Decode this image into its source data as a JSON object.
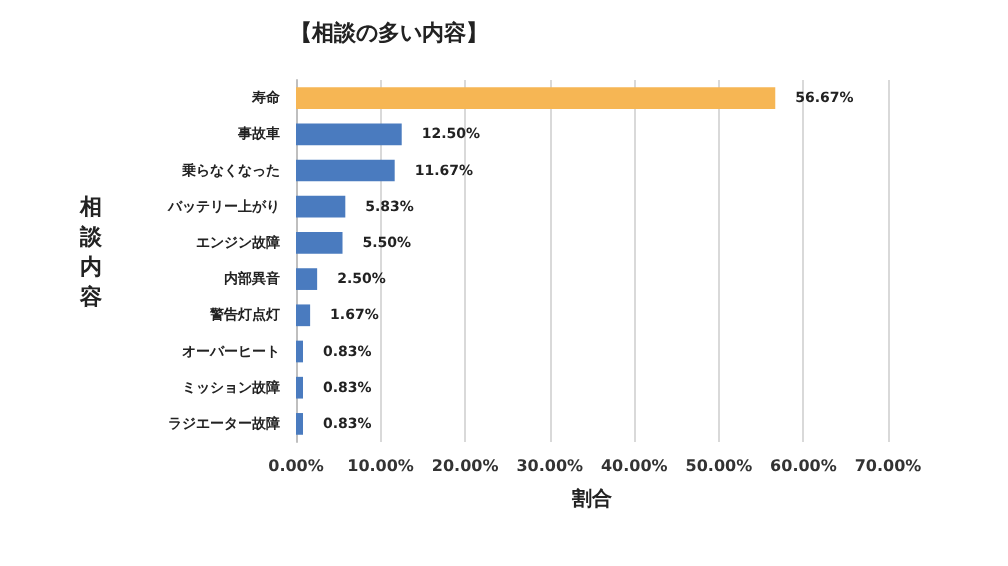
{
  "chart_data": {
    "type": "bar",
    "orientation": "horizontal",
    "title": "【相談の多い内容】",
    "xlabel": "割合",
    "ylabel": "相談内容",
    "categories": [
      "寿命",
      "事故車",
      "乗らなくなった",
      "バッテリー上がり",
      "エンジン故障",
      "内部異音",
      "警告灯点灯",
      "オーバーヒート",
      "ミッション故障",
      "ラジエーター故障"
    ],
    "values": [
      56.67,
      12.5,
      11.67,
      5.83,
      5.5,
      2.5,
      1.67,
      0.83,
      0.83,
      0.83
    ],
    "colors": [
      "#f6b654",
      "#4a7bbf",
      "#4a7bbf",
      "#4a7bbf",
      "#4a7bbf",
      "#4a7bbf",
      "#4a7bbf",
      "#4a7bbf",
      "#4a7bbf",
      "#4a7bbf"
    ],
    "value_labels": [
      "56.67%",
      "12.50%",
      "11.67%",
      "5.83%",
      "5.50%",
      "2.50%",
      "1.67%",
      "0.83%",
      "0.83%",
      "0.83%"
    ],
    "xlim": [
      0,
      70
    ],
    "xticks": [
      {
        "value": 0,
        "label": "0.00%"
      },
      {
        "value": 10,
        "label": "10.00%"
      },
      {
        "value": 20,
        "label": "20.00%"
      },
      {
        "value": 30,
        "label": "30.00%"
      },
      {
        "value": 40,
        "label": "40.00%"
      },
      {
        "value": 50,
        "label": "50.00%"
      },
      {
        "value": 60,
        "label": "60.00%"
      },
      {
        "value": 70,
        "label": "70.00%"
      }
    ],
    "grid": "x"
  }
}
